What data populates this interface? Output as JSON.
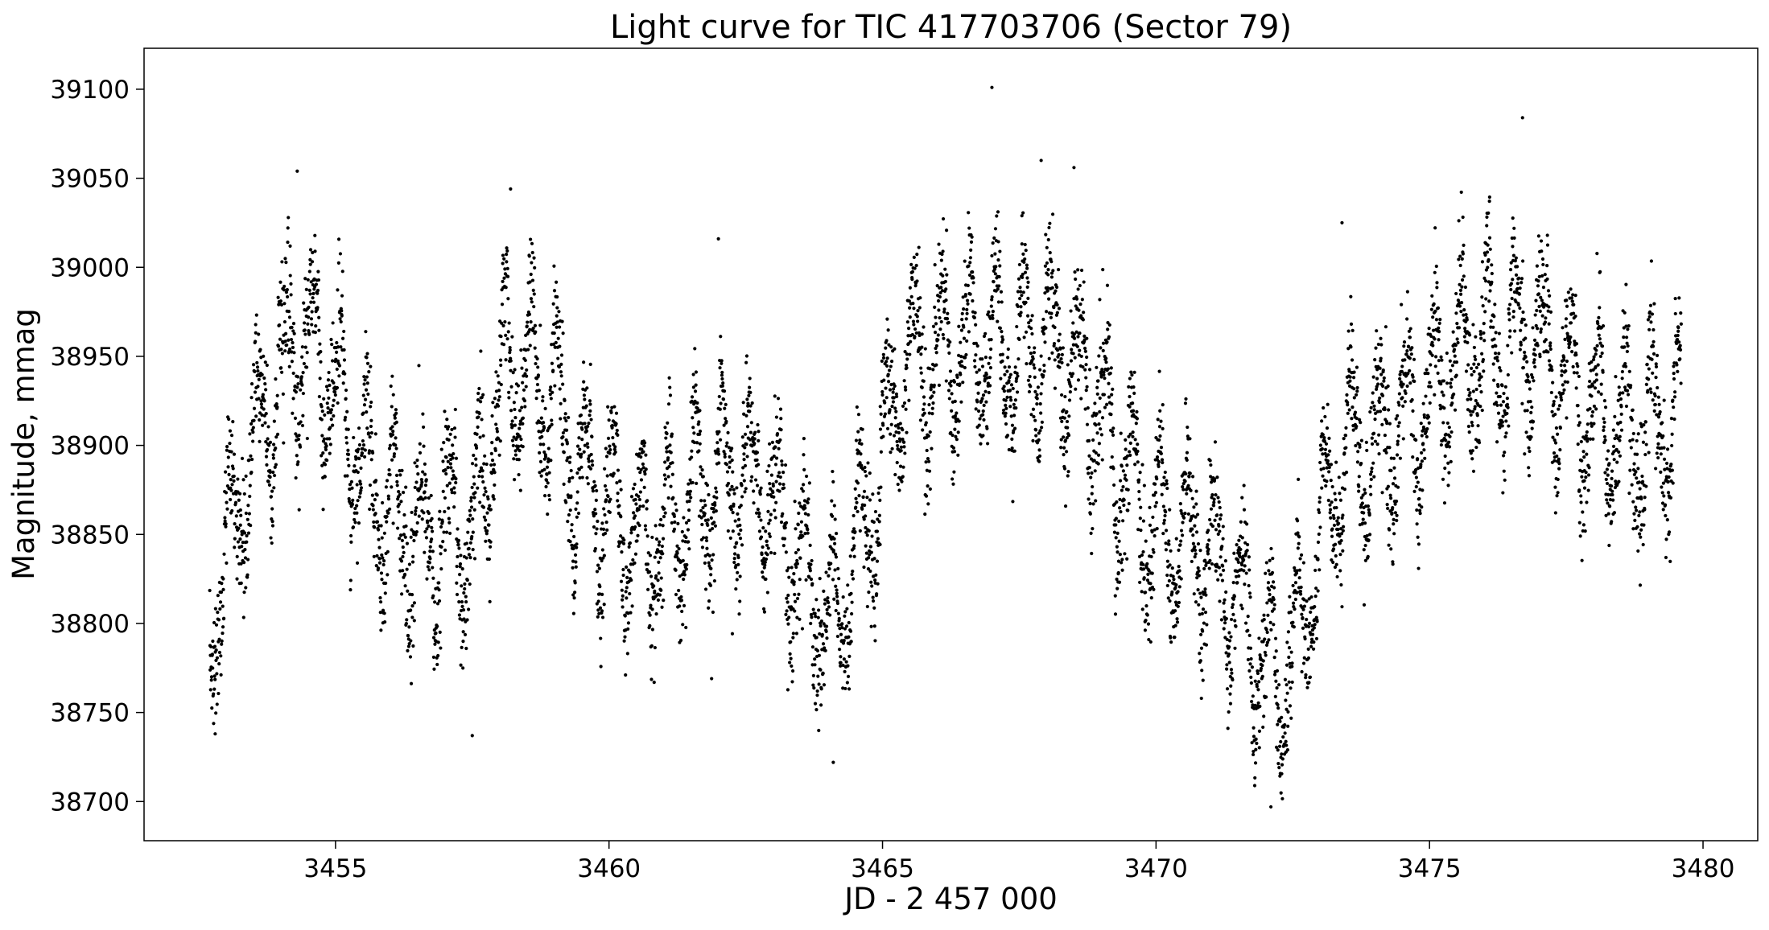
{
  "chart_data": {
    "type": "scatter",
    "title": "Light curve for TIC 417703706 (Sector 79)",
    "xlabel": "JD - 2 457 000",
    "ylabel": "Magnitude, mmag",
    "xlim": [
      3451.5,
      3481.0
    ],
    "ylim": [
      38678,
      39123
    ],
    "xticks": [
      3455,
      3460,
      3465,
      3470,
      3475,
      3480
    ],
    "yticks": [
      38700,
      38750,
      38800,
      38850,
      38900,
      38950,
      39000,
      39050,
      39100
    ],
    "grid": false,
    "marker_color": "#000000",
    "time_range": [
      3452.7,
      3479.6
    ],
    "trend_points": [
      [
        3452.7,
        38795
      ],
      [
        3453.0,
        38835
      ],
      [
        3453.4,
        38890
      ],
      [
        3453.8,
        38925
      ],
      [
        3454.3,
        38955
      ],
      [
        3454.8,
        38945
      ],
      [
        3455.3,
        38905
      ],
      [
        3455.8,
        38875
      ],
      [
        3456.3,
        38850
      ],
      [
        3456.8,
        38845
      ],
      [
        3457.2,
        38860
      ],
      [
        3457.5,
        38840
      ],
      [
        3457.8,
        38910
      ],
      [
        3458.2,
        38950
      ],
      [
        3458.6,
        38940
      ],
      [
        3459.0,
        38925
      ],
      [
        3459.4,
        38880
      ],
      [
        3459.8,
        38870
      ],
      [
        3460.3,
        38850
      ],
      [
        3460.8,
        38845
      ],
      [
        3461.3,
        38860
      ],
      [
        3461.8,
        38875
      ],
      [
        3462.3,
        38885
      ],
      [
        3462.8,
        38880
      ],
      [
        3463.3,
        38845
      ],
      [
        3463.7,
        38815
      ],
      [
        3464.0,
        38800
      ],
      [
        3464.5,
        38835
      ],
      [
        3465.0,
        38890
      ],
      [
        3465.4,
        38945
      ],
      [
        3465.8,
        38950
      ],
      [
        3466.3,
        38950
      ],
      [
        3466.8,
        38960
      ],
      [
        3467.3,
        38950
      ],
      [
        3467.8,
        38955
      ],
      [
        3468.3,
        38950
      ],
      [
        3468.8,
        38930
      ],
      [
        3469.3,
        38895
      ],
      [
        3469.8,
        38860
      ],
      [
        3470.3,
        38850
      ],
      [
        3470.8,
        38845
      ],
      [
        3471.3,
        38820
      ],
      [
        3471.8,
        38790
      ],
      [
        3472.2,
        38765
      ],
      [
        3472.6,
        38790
      ],
      [
        3473.0,
        38850
      ],
      [
        3473.4,
        38895
      ],
      [
        3473.8,
        38895
      ],
      [
        3474.3,
        38905
      ],
      [
        3474.8,
        38920
      ],
      [
        3475.3,
        38940
      ],
      [
        3475.8,
        38960
      ],
      [
        3476.3,
        38955
      ],
      [
        3476.8,
        38960
      ],
      [
        3477.3,
        38945
      ],
      [
        3477.8,
        38925
      ],
      [
        3478.3,
        38910
      ],
      [
        3478.8,
        38910
      ],
      [
        3479.3,
        38915
      ],
      [
        3479.6,
        38920
      ]
    ],
    "outliers": [
      [
        3467.0,
        39101
      ],
      [
        3476.7,
        39084
      ],
      [
        3454.3,
        39054
      ],
      [
        3458.2,
        39044
      ],
      [
        3467.9,
        39060
      ],
      [
        3468.5,
        39056
      ],
      [
        3472.1,
        38697
      ],
      [
        3464.1,
        38722
      ],
      [
        3452.8,
        38738
      ],
      [
        3457.5,
        38737
      ],
      [
        3473.4,
        39025
      ],
      [
        3462.0,
        39016
      ]
    ]
  }
}
